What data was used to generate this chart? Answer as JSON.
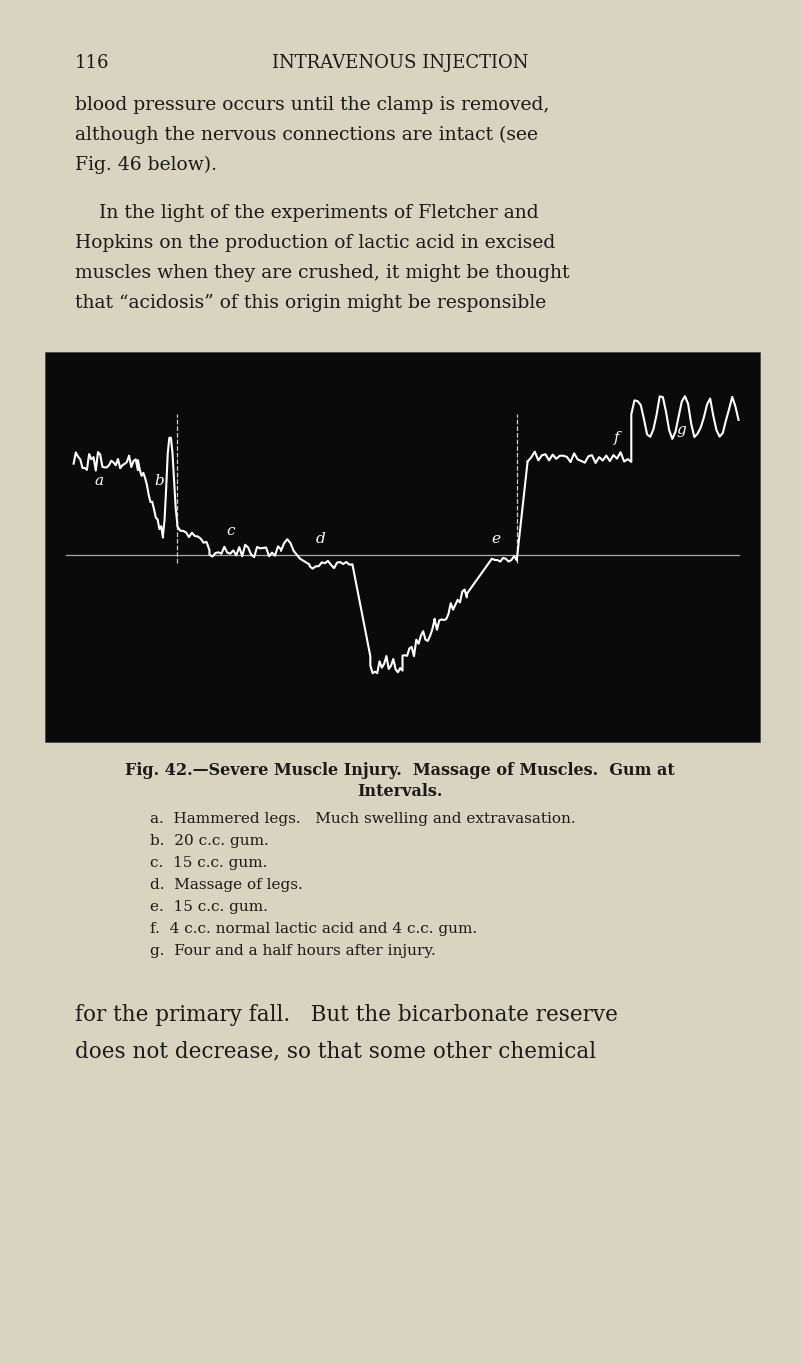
{
  "page_bg": "#d8d4c0",
  "page_number": "116",
  "header_title": "INTRAVENOUS INJECTION",
  "para1_lines": [
    "blood pressure occurs until the clamp is removed,",
    "although the nervous connections are intact (see",
    "Fig. 46 below)."
  ],
  "para2_lines": [
    "    In the light of the experiments of Fletcher and",
    "Hopkins on the production of lactic acid in excised",
    "muscles when they are crushed, it might be thought",
    "that “acidosis” of this origin might be responsible"
  ],
  "fig_caption_line1": "Fig. 42.—Severe Muscle Injury.  Massage of Muscles.  Gum at",
  "fig_caption_line2": "Intervals.",
  "legend": [
    "a.  Hammered legs.   Much swelling and extravasation.",
    "b.  20 c.c. gum.",
    "c.  15 c.c. gum.",
    "d.  Massage of legs.",
    "e.  15 c.c. gum.",
    "f.  4 c.c. normal lactic acid and 4 c.c. gum.",
    "g.  Four and a half hours after injury."
  ],
  "para3_lines": [
    "for the primary fall.   But the bicarbonate reserve",
    "does not decrease, so that some other chemical"
  ],
  "trace_color": "#ffffff",
  "label_color": "#ffffff",
  "dashed_color": "#cccccc",
  "baseline_color": "#aaaaaa"
}
